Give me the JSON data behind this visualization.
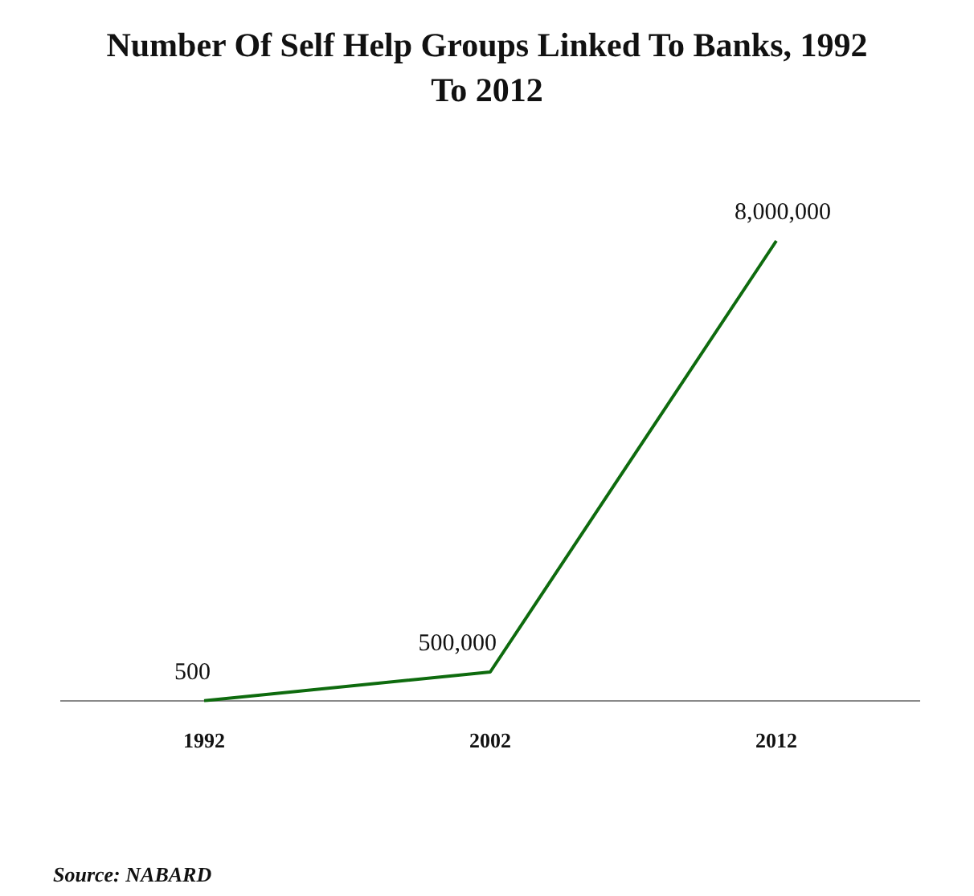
{
  "chart_data": {
    "type": "line",
    "title": "Number Of Self Help Groups Linked To Banks, 1992 To 2012",
    "categories": [
      "1992",
      "2002",
      "2012"
    ],
    "series": [
      {
        "color": "#0e6b0e",
        "values": [
          500,
          500000,
          8000000
        ],
        "value_labels": [
          "500",
          "500,000",
          "8,000,000"
        ]
      }
    ],
    "marker": "none",
    "annotations": [
      "Source: NABARD"
    ]
  }
}
